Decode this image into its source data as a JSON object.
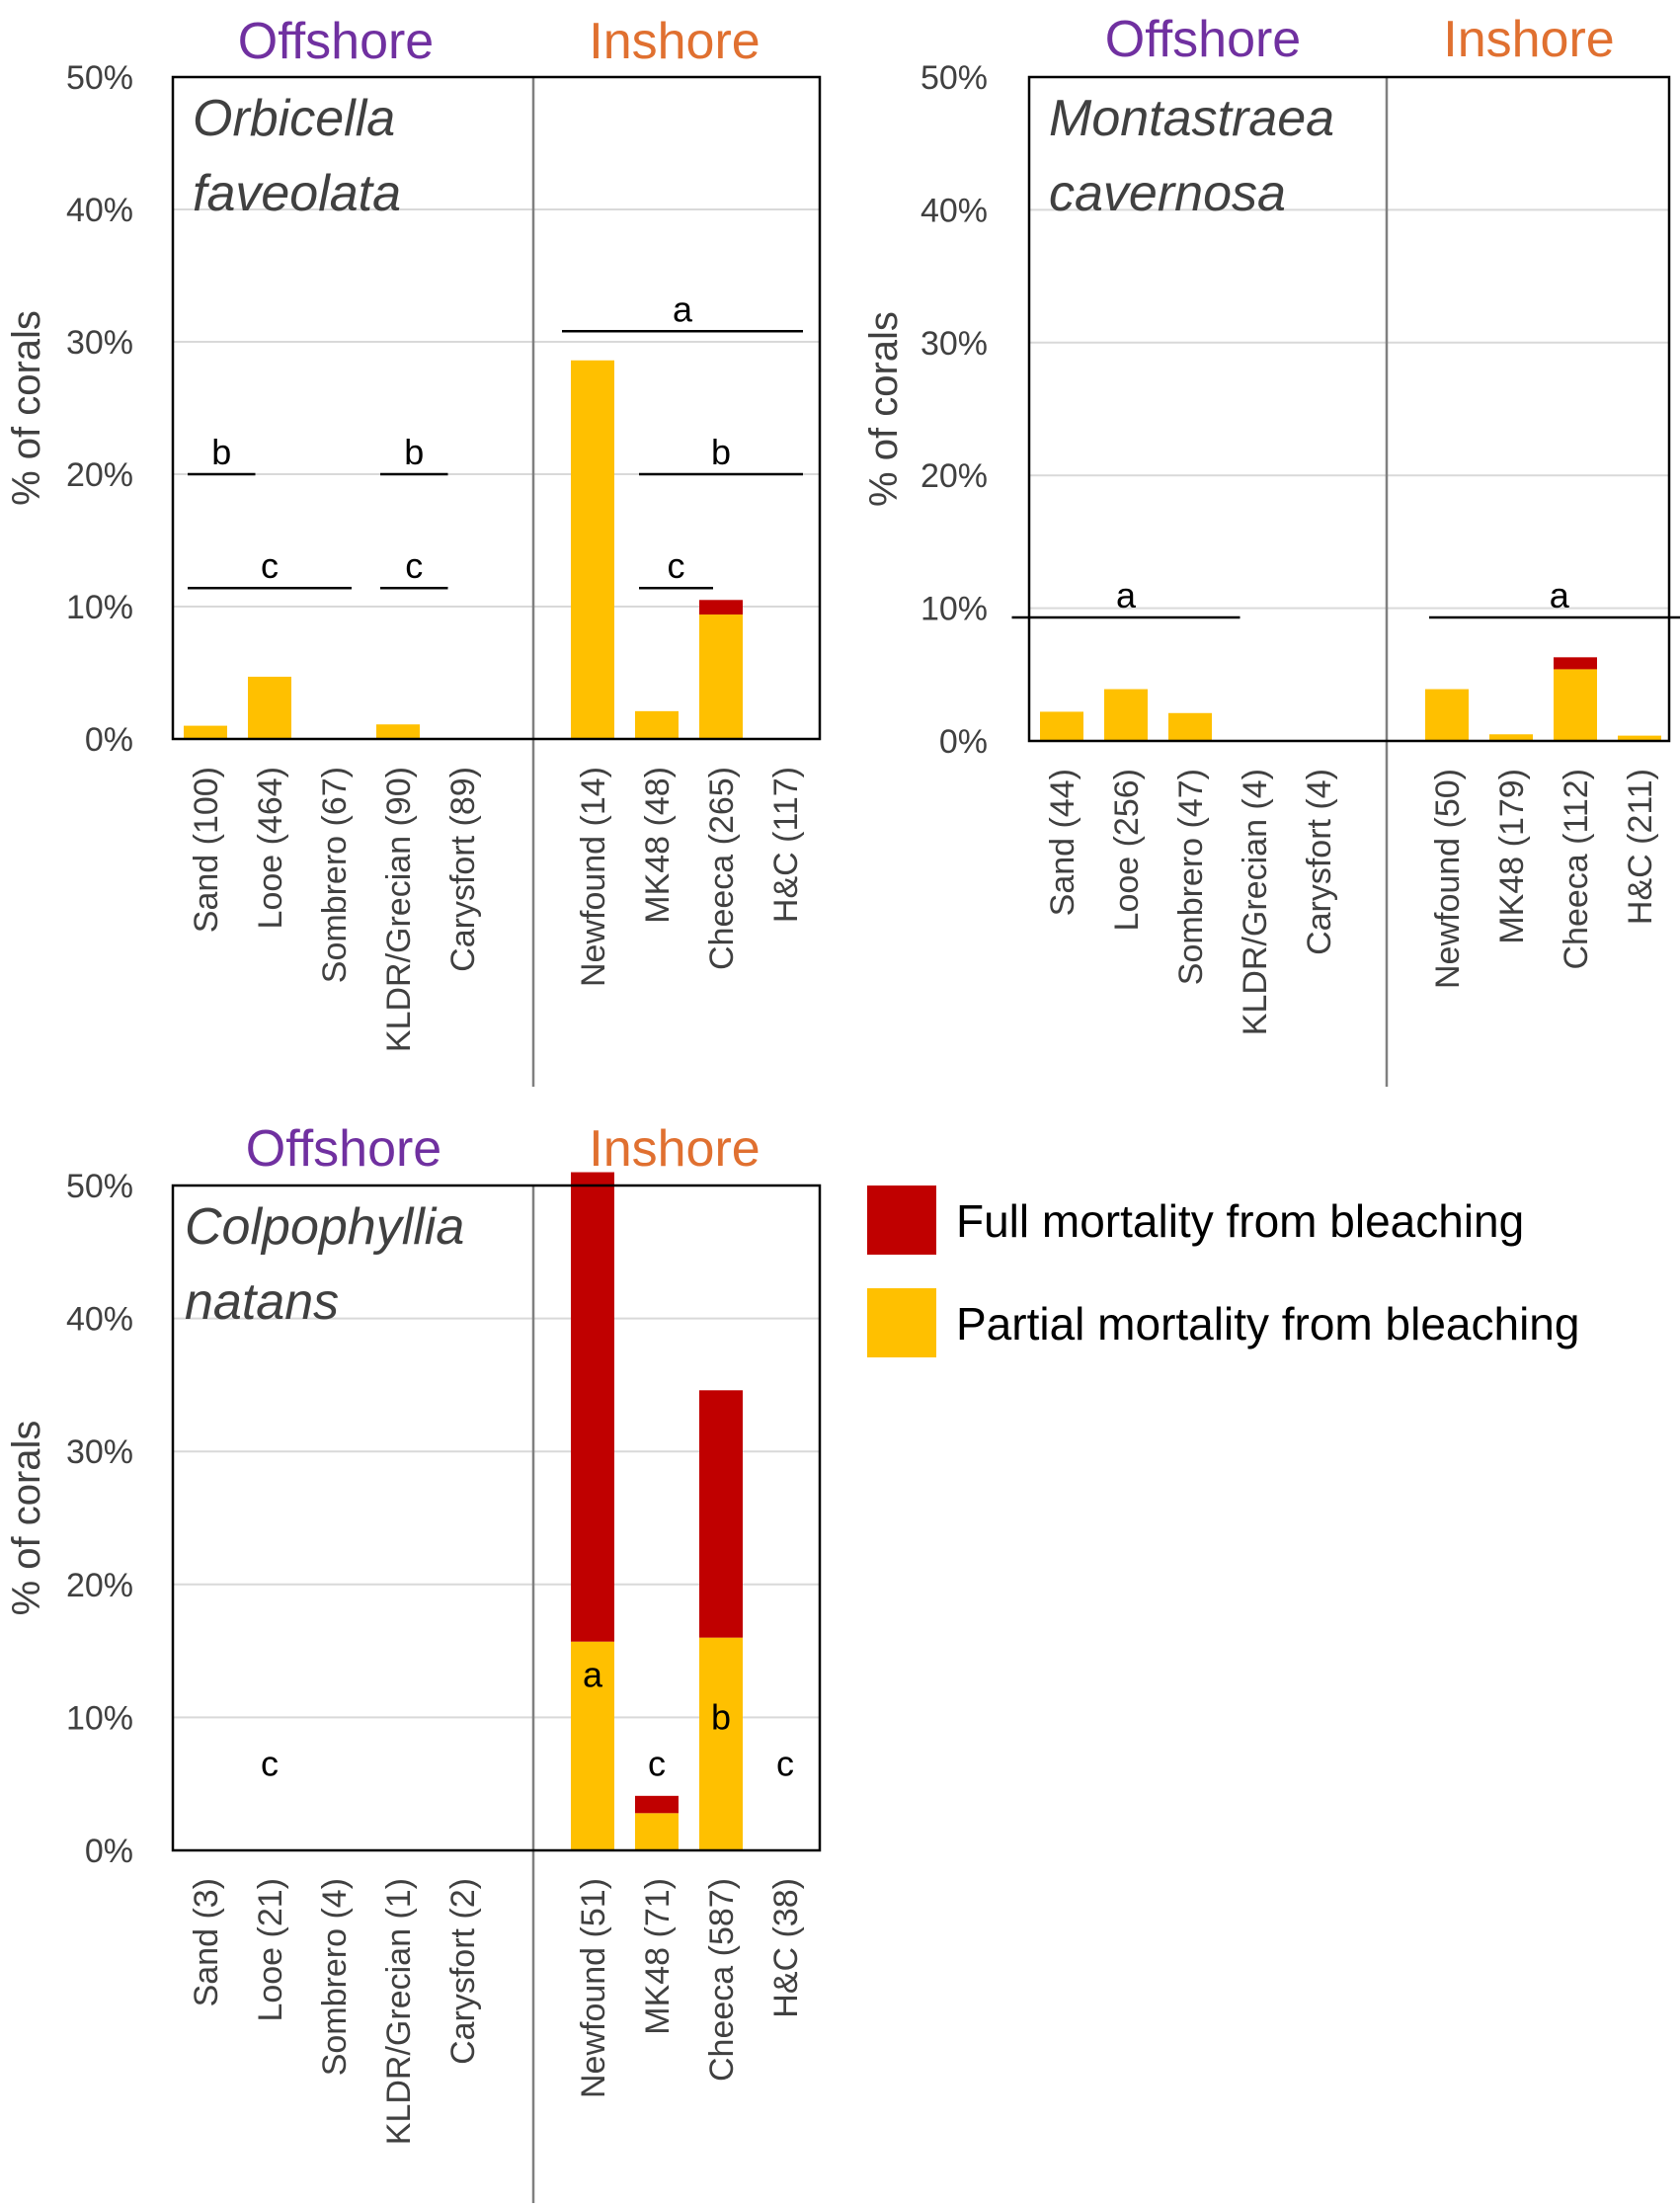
{
  "colors": {
    "partial": "#FFC000",
    "full": "#C00000",
    "offshore_label": "#7030A0",
    "inshore_label": "#E07030",
    "grid": "#D9D9D9",
    "axis": "#000000",
    "divider": "#808080",
    "text": "#404040"
  },
  "legend": {
    "full_label": "Full mortality from bleaching",
    "partial_label": "Partial mortality from bleaching"
  },
  "chart_data": [
    {
      "type": "bar",
      "stacked": true,
      "species_line1": "Orbicella",
      "species_line2": "faveolata",
      "region_labels": [
        "Offshore",
        "Inshore"
      ],
      "ylabel": "% of corals",
      "ylim": [
        0,
        50
      ],
      "yticks": [
        "0%",
        "10%",
        "20%",
        "30%",
        "40%",
        "50%"
      ],
      "offshore_count": 5,
      "categories": [
        "Sand (100)",
        "Looe (464)",
        "Sombrero (67)",
        "KLDR/Grecian (90)",
        "Carysfort (89)",
        "Newfound (14)",
        "MK48 (48)",
        "Cheeca (265)",
        "H&C (117)"
      ],
      "series": [
        {
          "name": "Partial mortality from bleaching",
          "color_key": "partial",
          "values": [
            1.0,
            4.7,
            0,
            1.1,
            0,
            28.6,
            2.1,
            9.4,
            0
          ]
        },
        {
          "name": "Full mortality from bleaching",
          "color_key": "full",
          "values": [
            0,
            0,
            0,
            0,
            0,
            0,
            0,
            1.1,
            0
          ]
        }
      ],
      "annotations": [
        {
          "text": "b",
          "x1": 0,
          "x2": 0.5,
          "y": 20.0
        },
        {
          "text": "c",
          "x1": 0,
          "x2": 2,
          "y": 11.4
        },
        {
          "text": "b",
          "x1": 3,
          "x2": 3.5,
          "y": 20.0
        },
        {
          "text": "c",
          "x1": 3,
          "x2": 3.5,
          "y": 11.4
        },
        {
          "text": "a",
          "x1": 4.8,
          "x2": 8,
          "y": 30.8
        },
        {
          "text": "b",
          "x1": 6,
          "x2": 8,
          "y": 20.0
        },
        {
          "text": "c",
          "x1": 6,
          "x2": 6.6,
          "y": 11.4
        }
      ]
    },
    {
      "type": "bar",
      "stacked": true,
      "species_line1": "Montastraea",
      "species_line2": "cavernosa",
      "region_labels": [
        "Offshore",
        "Inshore"
      ],
      "ylabel": "% of corals",
      "ylim": [
        0,
        50
      ],
      "yticks": [
        "0%",
        "10%",
        "20%",
        "30%",
        "40%",
        "50%"
      ],
      "offshore_count": 5,
      "categories": [
        "Sand (44)",
        "Looe (256)",
        "Sombrero (47)",
        "KLDR/Grecian (4)",
        "Carysfort (4)",
        "Newfound (50)",
        "MK48 (179)",
        "Cheeca (112)",
        "H&C (211)"
      ],
      "series": [
        {
          "name": "Partial mortality from bleaching",
          "color_key": "partial",
          "values": [
            2.2,
            3.9,
            2.1,
            0,
            0,
            3.9,
            0.5,
            5.4,
            0.4
          ]
        },
        {
          "name": "Full mortality from bleaching",
          "color_key": "full",
          "values": [
            0,
            0,
            0,
            0,
            0,
            0,
            0,
            0.9,
            0
          ]
        }
      ],
      "annotations": [
        {
          "text": "a",
          "x1": -0.5,
          "x2": 2.5,
          "y": 9.3
        },
        {
          "text": "a",
          "x1": 5,
          "x2": 8.5,
          "y": 9.3
        }
      ]
    },
    {
      "type": "bar",
      "stacked": true,
      "species_line1": "Colpophyllia",
      "species_line2": "natans",
      "region_labels": [
        "Offshore",
        "Inshore"
      ],
      "ylabel": "% of corals",
      "ylim": [
        0,
        50
      ],
      "yticks": [
        "0%",
        "10%",
        "20%",
        "30%",
        "40%",
        "50%"
      ],
      "offshore_count": 5,
      "categories": [
        "Sand (3)",
        "Looe (21)",
        "Sombrero (4)",
        "KLDR/Grecian (1)",
        "Carysfort (2)",
        "Newfound (51)",
        "MK48 (71)",
        "Cheeca (587)",
        "H&C (38)"
      ],
      "series": [
        {
          "name": "Partial mortality from bleaching",
          "color_key": "partial",
          "values": [
            0,
            0,
            0,
            0,
            0,
            15.7,
            2.8,
            16.0,
            0
          ]
        },
        {
          "name": "Full mortality from bleaching",
          "color_key": "full",
          "values": [
            0,
            0,
            0,
            0,
            0,
            35.3,
            1.3,
            18.6,
            0
          ]
        }
      ],
      "letters": [
        {
          "text": "c",
          "x": 1,
          "y": 6.5
        },
        {
          "text": "a",
          "x": 5,
          "y": 13.2
        },
        {
          "text": "c",
          "x": 6,
          "y": 6.5
        },
        {
          "text": "b",
          "x": 7,
          "y": 10.0
        },
        {
          "text": "c",
          "x": 8,
          "y": 6.5
        }
      ]
    }
  ]
}
